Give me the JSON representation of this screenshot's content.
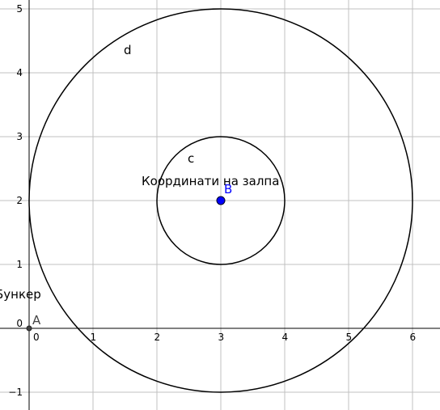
{
  "graph": {
    "x_ticks": [
      "0",
      "1",
      "2",
      "3",
      "4",
      "5",
      "6"
    ],
    "y_ticks": [
      "−1",
      "0",
      "1",
      "2",
      "3",
      "4",
      "5"
    ],
    "x_values": [
      0,
      1,
      2,
      3,
      4,
      5,
      6
    ],
    "y_values": [
      -1,
      0,
      1,
      2,
      3,
      4,
      5
    ],
    "x_range": [
      -0.02,
      6.4
    ],
    "y_range": [
      -1.27,
      5.12
    ],
    "grid": true
  },
  "objects": {
    "circle_d": {
      "label": "d",
      "center": [
        3,
        2
      ],
      "radius": 3
    },
    "circle_c": {
      "label": "c",
      "center": [
        3,
        2
      ],
      "radius": 1
    },
    "point_A": {
      "label": "A",
      "coords": [
        0,
        0
      ],
      "color": "#444444"
    },
    "point_B": {
      "label": "B",
      "coords": [
        3,
        2
      ],
      "color": "#0000ff"
    }
  },
  "texts": {
    "salvo": "Координати на залпа",
    "bunker": "Бункер"
  },
  "colors": {
    "grid": "#c0c0c0",
    "axis": "#000000",
    "point_B": "#0000ff",
    "point_B_label": "#0000ff",
    "point_A": "#444444"
  }
}
